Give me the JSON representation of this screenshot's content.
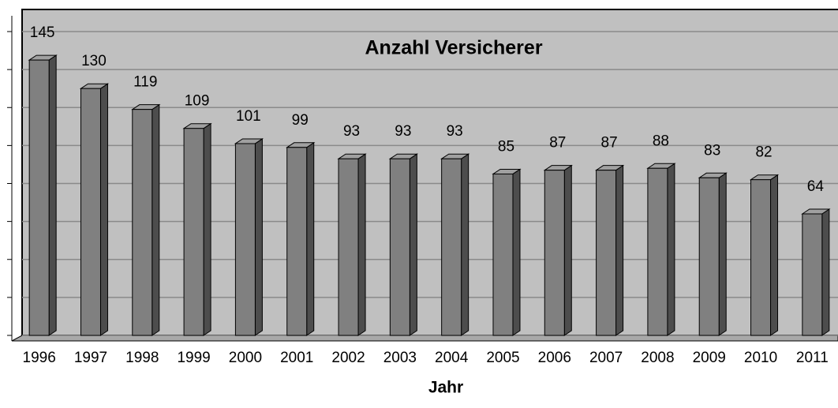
{
  "chart_data": {
    "type": "bar",
    "title": "Anzahl Versicherer",
    "x_label": "Jahr",
    "categories": [
      "1996",
      "1997",
      "1998",
      "1999",
      "2000",
      "2001",
      "2002",
      "2003",
      "2004",
      "2005",
      "2006",
      "2007",
      "2008",
      "2009",
      "2010",
      "2011"
    ],
    "values": [
      145,
      130,
      119,
      109,
      101,
      99,
      93,
      93,
      93,
      85,
      87,
      87,
      88,
      83,
      82,
      64
    ],
    "color": "#808080",
    "ylim": [
      0,
      160
    ],
    "yticks": [
      0,
      20,
      40,
      60,
      80,
      100,
      120,
      140,
      160
    ],
    "grid": true
  }
}
